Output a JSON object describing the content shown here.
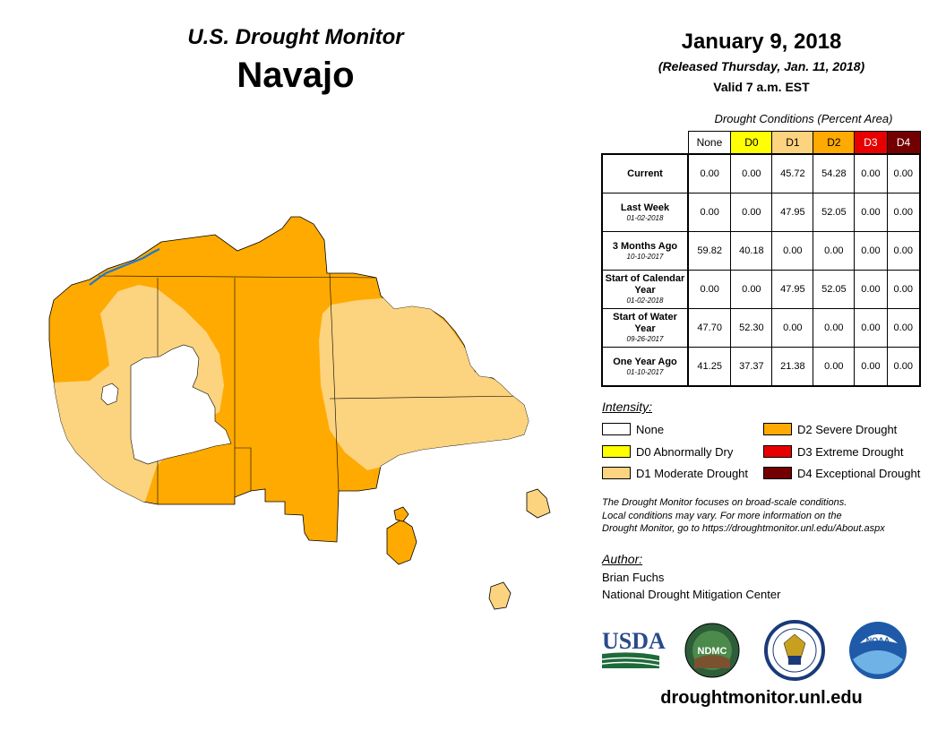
{
  "header": {
    "title": "U.S. Drought Monitor",
    "region": "Navajo",
    "date": "January 9, 2018",
    "released": "(Released Thursday, Jan. 11, 2018)",
    "valid": "Valid 7 a.m. EST"
  },
  "table": {
    "title": "Drought Conditions (Percent Area)",
    "columns": [
      {
        "label": "None",
        "color": "#ffffff",
        "text_color": "#000000"
      },
      {
        "label": "D0",
        "color": "#ffff00",
        "text_color": "#000000"
      },
      {
        "label": "D1",
        "color": "#fcd37f",
        "text_color": "#000000"
      },
      {
        "label": "D2",
        "color": "#ffaa00",
        "text_color": "#000000"
      },
      {
        "label": "D3",
        "color": "#e60000",
        "text_color": "#ffffff"
      },
      {
        "label": "D4",
        "color": "#730000",
        "text_color": "#ffffff"
      }
    ],
    "rows": [
      {
        "label": "Current",
        "sub": "",
        "values": [
          "0.00",
          "0.00",
          "45.72",
          "54.28",
          "0.00",
          "0.00"
        ]
      },
      {
        "label": "Last Week",
        "sub": "01-02-2018",
        "values": [
          "0.00",
          "0.00",
          "47.95",
          "52.05",
          "0.00",
          "0.00"
        ]
      },
      {
        "label": "3 Months Ago",
        "sub": "10-10-2017",
        "values": [
          "59.82",
          "40.18",
          "0.00",
          "0.00",
          "0.00",
          "0.00"
        ]
      },
      {
        "label": "Start of Calendar Year",
        "sub": "01-02-2018",
        "values": [
          "0.00",
          "0.00",
          "47.95",
          "52.05",
          "0.00",
          "0.00"
        ]
      },
      {
        "label": "Start of Water Year",
        "sub": "09-26-2017",
        "values": [
          "47.70",
          "52.30",
          "0.00",
          "0.00",
          "0.00",
          "0.00"
        ]
      },
      {
        "label": "One Year Ago",
        "sub": "01-10-2017",
        "values": [
          "41.25",
          "37.37",
          "21.38",
          "0.00",
          "0.00",
          "0.00"
        ]
      }
    ]
  },
  "legend": {
    "title": "Intensity:",
    "items": [
      {
        "label": "None",
        "color": "#ffffff"
      },
      {
        "label": "D0 Abnormally Dry",
        "color": "#ffff00"
      },
      {
        "label": "D1 Moderate Drought",
        "color": "#fcd37f"
      },
      {
        "label": "D2 Severe Drought",
        "color": "#ffaa00"
      },
      {
        "label": "D3 Extreme Drought",
        "color": "#e60000"
      },
      {
        "label": "D4 Exceptional Drought",
        "color": "#730000"
      }
    ]
  },
  "disclaimer": [
    "The Drought Monitor focuses on broad-scale conditions.",
    "Local conditions may vary. For more information on the",
    "Drought Monitor, go to https://droughtmonitor.unl.edu/About.aspx"
  ],
  "author": {
    "title": "Author:",
    "name": "Brian Fuchs",
    "org": "National Drought Mitigation Center"
  },
  "logos": {
    "usda": "USDA",
    "ndmc": "NDMC",
    "noaa": "NOAA"
  },
  "website": "droughtmonitor.unl.edu",
  "map_colors": {
    "d1": "#fcd37f",
    "d2": "#ffaa00",
    "water": "#1f78d0",
    "outline": "#000000"
  }
}
